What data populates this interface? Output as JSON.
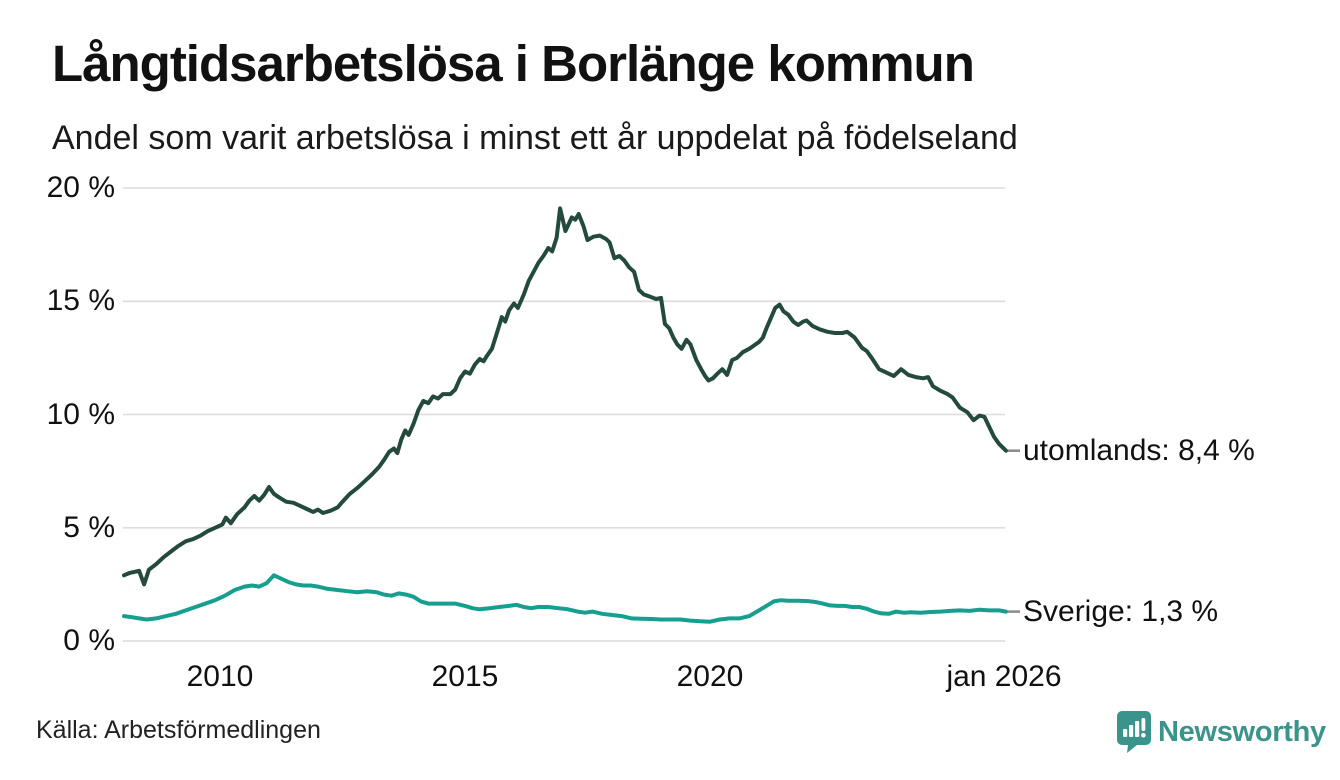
{
  "header": {
    "title": "Långtidsarbetslösa i Borlänge kommun",
    "subtitle": "Andel som varit arbetslösa i minst ett år uppdelat på födelseland"
  },
  "chart_data": {
    "type": "line",
    "title": "Långtidsarbetslösa i Borlänge kommun",
    "subtitle": "Andel som varit arbetslösa i minst ett år uppdelat på födelseland",
    "grid": "horizontal",
    "legend_position": "end-of-line-labels",
    "x_axis": {
      "range": [
        2008.04,
        2026.04
      ],
      "ticks": [
        {
          "label": "2010",
          "year": 2010
        },
        {
          "label": "2015",
          "year": 2015
        },
        {
          "label": "2020",
          "year": 2020
        },
        {
          "label": "jan 2026",
          "year": 2026
        }
      ]
    },
    "y_axis": {
      "unit": "%",
      "range": [
        0,
        20
      ],
      "ticks": [
        {
          "label": "0 %",
          "value": 0
        },
        {
          "label": "5 %",
          "value": 5
        },
        {
          "label": "10 %",
          "value": 10
        },
        {
          "label": "15 %",
          "value": 15
        },
        {
          "label": "20 %",
          "value": 20
        }
      ]
    },
    "series": [
      {
        "name": "utomlands",
        "end_label": "utomlands: 8,4 %",
        "last_value": 8.4,
        "color": "#24493d",
        "points": [
          [
            2008.04,
            2.9
          ],
          [
            2008.15,
            3.0
          ],
          [
            2008.25,
            3.05
          ],
          [
            2008.35,
            3.1
          ],
          [
            2008.45,
            2.5
          ],
          [
            2008.55,
            3.15
          ],
          [
            2008.7,
            3.4
          ],
          [
            2008.85,
            3.7
          ],
          [
            2009.0,
            3.95
          ],
          [
            2009.15,
            4.2
          ],
          [
            2009.3,
            4.4
          ],
          [
            2009.45,
            4.5
          ],
          [
            2009.6,
            4.65
          ],
          [
            2009.75,
            4.85
          ],
          [
            2009.9,
            5.0
          ],
          [
            2010.05,
            5.15
          ],
          [
            2010.12,
            5.45
          ],
          [
            2010.22,
            5.2
          ],
          [
            2010.35,
            5.6
          ],
          [
            2010.5,
            5.9
          ],
          [
            2010.6,
            6.2
          ],
          [
            2010.7,
            6.4
          ],
          [
            2010.8,
            6.2
          ],
          [
            2010.9,
            6.45
          ],
          [
            2011.0,
            6.8
          ],
          [
            2011.1,
            6.5
          ],
          [
            2011.2,
            6.35
          ],
          [
            2011.35,
            6.15
          ],
          [
            2011.5,
            6.1
          ],
          [
            2011.6,
            6.0
          ],
          [
            2011.75,
            5.85
          ],
          [
            2011.9,
            5.7
          ],
          [
            2012.0,
            5.8
          ],
          [
            2012.1,
            5.65
          ],
          [
            2012.25,
            5.75
          ],
          [
            2012.4,
            5.9
          ],
          [
            2012.5,
            6.15
          ],
          [
            2012.65,
            6.5
          ],
          [
            2012.8,
            6.75
          ],
          [
            2012.95,
            7.05
          ],
          [
            2013.1,
            7.35
          ],
          [
            2013.25,
            7.7
          ],
          [
            2013.35,
            8.0
          ],
          [
            2013.45,
            8.35
          ],
          [
            2013.55,
            8.5
          ],
          [
            2013.62,
            8.3
          ],
          [
            2013.7,
            8.9
          ],
          [
            2013.78,
            9.3
          ],
          [
            2013.85,
            9.1
          ],
          [
            2013.95,
            9.6
          ],
          [
            2014.05,
            10.2
          ],
          [
            2014.15,
            10.6
          ],
          [
            2014.25,
            10.5
          ],
          [
            2014.35,
            10.8
          ],
          [
            2014.45,
            10.7
          ],
          [
            2014.55,
            10.9
          ],
          [
            2014.7,
            10.9
          ],
          [
            2014.8,
            11.1
          ],
          [
            2014.9,
            11.6
          ],
          [
            2015.0,
            11.9
          ],
          [
            2015.1,
            11.8
          ],
          [
            2015.2,
            12.2
          ],
          [
            2015.3,
            12.45
          ],
          [
            2015.38,
            12.35
          ],
          [
            2015.45,
            12.6
          ],
          [
            2015.55,
            12.9
          ],
          [
            2015.65,
            13.6
          ],
          [
            2015.75,
            14.3
          ],
          [
            2015.82,
            14.1
          ],
          [
            2015.9,
            14.6
          ],
          [
            2016.0,
            14.9
          ],
          [
            2016.08,
            14.7
          ],
          [
            2016.2,
            15.3
          ],
          [
            2016.3,
            15.9
          ],
          [
            2016.4,
            16.3
          ],
          [
            2016.5,
            16.7
          ],
          [
            2016.6,
            17.0
          ],
          [
            2016.7,
            17.35
          ],
          [
            2016.78,
            17.2
          ],
          [
            2016.87,
            17.8
          ],
          [
            2016.94,
            19.1
          ],
          [
            2017.05,
            18.1
          ],
          [
            2017.18,
            18.7
          ],
          [
            2017.25,
            18.6
          ],
          [
            2017.32,
            18.85
          ],
          [
            2017.42,
            18.3
          ],
          [
            2017.5,
            17.7
          ],
          [
            2017.62,
            17.85
          ],
          [
            2017.75,
            17.9
          ],
          [
            2017.88,
            17.75
          ],
          [
            2017.95,
            17.6
          ],
          [
            2018.05,
            16.9
          ],
          [
            2018.15,
            17.0
          ],
          [
            2018.25,
            16.8
          ],
          [
            2018.35,
            16.5
          ],
          [
            2018.45,
            16.3
          ],
          [
            2018.55,
            15.5
          ],
          [
            2018.65,
            15.3
          ],
          [
            2018.78,
            15.2
          ],
          [
            2018.9,
            15.1
          ],
          [
            2019.0,
            15.15
          ],
          [
            2019.08,
            14.0
          ],
          [
            2019.17,
            13.8
          ],
          [
            2019.25,
            13.4
          ],
          [
            2019.33,
            13.1
          ],
          [
            2019.42,
            12.9
          ],
          [
            2019.52,
            13.3
          ],
          [
            2019.6,
            13.1
          ],
          [
            2019.72,
            12.4
          ],
          [
            2019.82,
            12.0
          ],
          [
            2019.9,
            11.7
          ],
          [
            2019.97,
            11.5
          ],
          [
            2020.06,
            11.6
          ],
          [
            2020.15,
            11.8
          ],
          [
            2020.25,
            12.0
          ],
          [
            2020.35,
            11.75
          ],
          [
            2020.45,
            12.4
          ],
          [
            2020.55,
            12.5
          ],
          [
            2020.67,
            12.75
          ],
          [
            2020.8,
            12.9
          ],
          [
            2020.9,
            13.05
          ],
          [
            2021.0,
            13.2
          ],
          [
            2021.08,
            13.4
          ],
          [
            2021.15,
            13.8
          ],
          [
            2021.25,
            14.3
          ],
          [
            2021.33,
            14.7
          ],
          [
            2021.42,
            14.85
          ],
          [
            2021.5,
            14.55
          ],
          [
            2021.6,
            14.4
          ],
          [
            2021.7,
            14.1
          ],
          [
            2021.8,
            13.95
          ],
          [
            2021.9,
            14.1
          ],
          [
            2021.97,
            14.15
          ],
          [
            2022.1,
            13.9
          ],
          [
            2022.25,
            13.75
          ],
          [
            2022.4,
            13.65
          ],
          [
            2022.55,
            13.6
          ],
          [
            2022.7,
            13.6
          ],
          [
            2022.8,
            13.65
          ],
          [
            2022.95,
            13.4
          ],
          [
            2023.1,
            12.95
          ],
          [
            2023.2,
            12.8
          ],
          [
            2023.3,
            12.5
          ],
          [
            2023.45,
            12.0
          ],
          [
            2023.6,
            11.85
          ],
          [
            2023.75,
            11.7
          ],
          [
            2023.9,
            12.0
          ],
          [
            2024.05,
            11.75
          ],
          [
            2024.2,
            11.65
          ],
          [
            2024.35,
            11.6
          ],
          [
            2024.45,
            11.65
          ],
          [
            2024.55,
            11.25
          ],
          [
            2024.7,
            11.05
          ],
          [
            2024.85,
            10.9
          ],
          [
            2024.95,
            10.75
          ],
          [
            2025.1,
            10.3
          ],
          [
            2025.25,
            10.1
          ],
          [
            2025.38,
            9.75
          ],
          [
            2025.5,
            9.95
          ],
          [
            2025.6,
            9.9
          ],
          [
            2025.7,
            9.45
          ],
          [
            2025.8,
            9.0
          ],
          [
            2025.9,
            8.7
          ],
          [
            2026.04,
            8.4
          ]
        ]
      },
      {
        "name": "Sverige",
        "end_label": "Sverige: 1,3 %",
        "last_value": 1.3,
        "color": "#169e8e",
        "points": [
          [
            2008.04,
            1.1
          ],
          [
            2008.2,
            1.05
          ],
          [
            2008.35,
            1.0
          ],
          [
            2008.5,
            0.95
          ],
          [
            2008.7,
            1.0
          ],
          [
            2008.9,
            1.1
          ],
          [
            2009.1,
            1.2
          ],
          [
            2009.3,
            1.35
          ],
          [
            2009.5,
            1.5
          ],
          [
            2009.7,
            1.65
          ],
          [
            2009.9,
            1.8
          ],
          [
            2010.1,
            2.0
          ],
          [
            2010.3,
            2.25
          ],
          [
            2010.5,
            2.4
          ],
          [
            2010.65,
            2.45
          ],
          [
            2010.8,
            2.4
          ],
          [
            2010.95,
            2.55
          ],
          [
            2011.1,
            2.9
          ],
          [
            2011.25,
            2.75
          ],
          [
            2011.4,
            2.6
          ],
          [
            2011.55,
            2.5
          ],
          [
            2011.7,
            2.45
          ],
          [
            2011.85,
            2.45
          ],
          [
            2012.0,
            2.4
          ],
          [
            2012.2,
            2.3
          ],
          [
            2012.4,
            2.25
          ],
          [
            2012.6,
            2.2
          ],
          [
            2012.8,
            2.15
          ],
          [
            2013.0,
            2.2
          ],
          [
            2013.2,
            2.15
          ],
          [
            2013.35,
            2.05
          ],
          [
            2013.5,
            2.0
          ],
          [
            2013.65,
            2.1
          ],
          [
            2013.8,
            2.05
          ],
          [
            2013.95,
            1.95
          ],
          [
            2014.1,
            1.75
          ],
          [
            2014.25,
            1.65
          ],
          [
            2014.4,
            1.65
          ],
          [
            2014.6,
            1.65
          ],
          [
            2014.8,
            1.65
          ],
          [
            2015.0,
            1.55
          ],
          [
            2015.15,
            1.45
          ],
          [
            2015.3,
            1.4
          ],
          [
            2015.5,
            1.45
          ],
          [
            2015.7,
            1.5
          ],
          [
            2015.9,
            1.55
          ],
          [
            2016.05,
            1.6
          ],
          [
            2016.2,
            1.5
          ],
          [
            2016.35,
            1.45
          ],
          [
            2016.5,
            1.5
          ],
          [
            2016.7,
            1.5
          ],
          [
            2016.9,
            1.45
          ],
          [
            2017.1,
            1.4
          ],
          [
            2017.3,
            1.3
          ],
          [
            2017.45,
            1.25
          ],
          [
            2017.6,
            1.3
          ],
          [
            2017.8,
            1.2
          ],
          [
            2018.0,
            1.15
          ],
          [
            2018.2,
            1.1
          ],
          [
            2018.4,
            1.0
          ],
          [
            2018.6,
            0.98
          ],
          [
            2018.8,
            0.97
          ],
          [
            2019.0,
            0.95
          ],
          [
            2019.2,
            0.95
          ],
          [
            2019.4,
            0.95
          ],
          [
            2019.6,
            0.9
          ],
          [
            2019.8,
            0.87
          ],
          [
            2020.0,
            0.85
          ],
          [
            2020.2,
            0.95
          ],
          [
            2020.4,
            1.0
          ],
          [
            2020.6,
            1.0
          ],
          [
            2020.8,
            1.1
          ],
          [
            2021.0,
            1.35
          ],
          [
            2021.15,
            1.55
          ],
          [
            2021.3,
            1.75
          ],
          [
            2021.45,
            1.8
          ],
          [
            2021.6,
            1.78
          ],
          [
            2021.8,
            1.78
          ],
          [
            2022.0,
            1.76
          ],
          [
            2022.15,
            1.72
          ],
          [
            2022.3,
            1.65
          ],
          [
            2022.45,
            1.57
          ],
          [
            2022.6,
            1.55
          ],
          [
            2022.75,
            1.55
          ],
          [
            2022.9,
            1.5
          ],
          [
            2023.05,
            1.5
          ],
          [
            2023.2,
            1.42
          ],
          [
            2023.35,
            1.3
          ],
          [
            2023.5,
            1.22
          ],
          [
            2023.65,
            1.2
          ],
          [
            2023.8,
            1.3
          ],
          [
            2023.95,
            1.25
          ],
          [
            2024.1,
            1.27
          ],
          [
            2024.3,
            1.25
          ],
          [
            2024.5,
            1.28
          ],
          [
            2024.7,
            1.3
          ],
          [
            2024.9,
            1.33
          ],
          [
            2025.1,
            1.35
          ],
          [
            2025.3,
            1.33
          ],
          [
            2025.5,
            1.38
          ],
          [
            2025.7,
            1.35
          ],
          [
            2025.9,
            1.35
          ],
          [
            2026.04,
            1.3
          ]
        ]
      }
    ]
  },
  "footer": {
    "source": "Källa: Arbetsförmedlingen",
    "logo_text": "Newsworthy"
  },
  "colors": {
    "background": "#ffffff",
    "grid": "#dcdcdc",
    "leader_dash": "#8a8a8a",
    "text": "#1a1a1a",
    "brand": "#3a948b"
  }
}
